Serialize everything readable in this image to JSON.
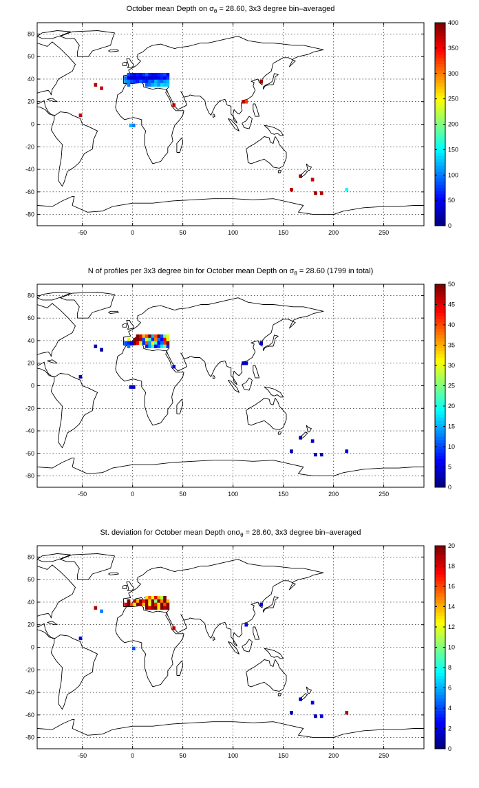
{
  "chart_data": [
    {
      "type": "heatmap",
      "title_parts": [
        "October mean Depth on ",
        "σ",
        "θ",
        " = 28.60, 3x3 degree bin–averaged"
      ],
      "xlim": [
        -95,
        290
      ],
      "ylim": [
        -90,
        90
      ],
      "xticks": [
        -50,
        0,
        50,
        100,
        150,
        200,
        250
      ],
      "yticks": [
        -80,
        -60,
        -40,
        -20,
        0,
        20,
        40,
        60,
        80
      ],
      "grid": true,
      "colorbar": {
        "min": 0,
        "max": 400,
        "ticks": [
          0,
          50,
          100,
          150,
          200,
          250,
          300,
          350,
          400
        ]
      },
      "cells": [
        [
          -4,
          44,
          80
        ],
        [
          -1,
          44,
          60
        ],
        [
          2,
          44,
          40
        ],
        [
          5,
          44,
          60
        ],
        [
          8,
          44,
          50
        ],
        [
          11,
          44,
          70
        ],
        [
          14,
          44,
          90
        ],
        [
          17,
          44,
          60
        ],
        [
          20,
          44,
          40
        ],
        [
          23,
          44,
          50
        ],
        [
          26,
          44,
          60
        ],
        [
          29,
          44,
          70
        ],
        [
          32,
          44,
          80
        ],
        [
          35,
          44,
          50
        ],
        [
          -7,
          41,
          90
        ],
        [
          -4,
          41,
          40
        ],
        [
          -1,
          41,
          30
        ],
        [
          2,
          41,
          30
        ],
        [
          5,
          41,
          50
        ],
        [
          8,
          41,
          40
        ],
        [
          11,
          41,
          30
        ],
        [
          14,
          41,
          50
        ],
        [
          17,
          41,
          30
        ],
        [
          20,
          41,
          40
        ],
        [
          23,
          41,
          30
        ],
        [
          26,
          41,
          50
        ],
        [
          29,
          41,
          60
        ],
        [
          32,
          41,
          40
        ],
        [
          35,
          41,
          70
        ],
        [
          -7,
          38,
          110
        ],
        [
          -4,
          38,
          100
        ],
        [
          -1,
          38,
          80
        ],
        [
          2,
          38,
          70
        ],
        [
          5,
          38,
          60
        ],
        [
          8,
          38,
          90
        ],
        [
          11,
          38,
          70
        ],
        [
          14,
          38,
          60
        ],
        [
          17,
          38,
          90
        ],
        [
          20,
          38,
          80
        ],
        [
          23,
          38,
          120
        ],
        [
          26,
          38,
          100
        ],
        [
          29,
          38,
          90
        ],
        [
          32,
          38,
          110
        ],
        [
          35,
          38,
          120
        ],
        [
          -4,
          35,
          100
        ],
        [
          14,
          35,
          90
        ],
        [
          17,
          35,
          100
        ],
        [
          20,
          35,
          120
        ],
        [
          23,
          35,
          130
        ],
        [
          26,
          35,
          110
        ],
        [
          29,
          35,
          140
        ],
        [
          32,
          35,
          130
        ],
        [
          35,
          35,
          130
        ],
        [
          -37,
          35,
          380
        ],
        [
          -31,
          32,
          370
        ],
        [
          -52,
          8,
          370
        ],
        [
          -2,
          -1,
          120
        ],
        [
          1,
          -1,
          100
        ],
        [
          41,
          17,
          380
        ],
        [
          128,
          38,
          390
        ],
        [
          113,
          20,
          330
        ],
        [
          110,
          20,
          380
        ],
        [
          167,
          -46,
          390
        ],
        [
          179,
          -49,
          370
        ],
        [
          158,
          -58,
          380
        ],
        [
          182,
          -61,
          390
        ],
        [
          188,
          -61,
          380
        ],
        [
          213,
          -58,
          150
        ]
      ]
    },
    {
      "type": "heatmap",
      "title_parts": [
        "N of profiles per 3x3 degree bin for October mean Depth on ",
        "σ",
        "θ",
        " = 28.60 (1799 in total)"
      ],
      "xlim": [
        -95,
        290
      ],
      "ylim": [
        -90,
        90
      ],
      "xticks": [
        -50,
        0,
        50,
        100,
        150,
        200,
        250
      ],
      "yticks": [
        -80,
        -60,
        -40,
        -20,
        0,
        20,
        40,
        60,
        80
      ],
      "grid": true,
      "colorbar": {
        "min": 0,
        "max": 50,
        "ticks": [
          0,
          5,
          10,
          15,
          20,
          25,
          30,
          35,
          40,
          45,
          50
        ]
      },
      "cells": [
        [
          5,
          44,
          50
        ],
        [
          8,
          44,
          45
        ],
        [
          11,
          44,
          35
        ],
        [
          14,
          44,
          40
        ],
        [
          17,
          44,
          50
        ],
        [
          20,
          44,
          15
        ],
        [
          23,
          44,
          40
        ],
        [
          26,
          44,
          50
        ],
        [
          29,
          44,
          10
        ],
        [
          32,
          44,
          25
        ],
        [
          35,
          44,
          30
        ],
        [
          -4,
          41,
          30
        ],
        [
          2,
          41,
          50
        ],
        [
          5,
          41,
          50
        ],
        [
          8,
          41,
          48
        ],
        [
          11,
          41,
          10
        ],
        [
          14,
          41,
          30
        ],
        [
          17,
          41,
          22
        ],
        [
          20,
          41,
          8
        ],
        [
          23,
          41,
          38
        ],
        [
          26,
          41,
          12
        ],
        [
          29,
          41,
          6
        ],
        [
          32,
          41,
          45
        ],
        [
          35,
          41,
          30
        ],
        [
          -7,
          38,
          10
        ],
        [
          -4,
          38,
          8
        ],
        [
          -1,
          38,
          5
        ],
        [
          2,
          38,
          50
        ],
        [
          5,
          38,
          44
        ],
        [
          8,
          38,
          30
        ],
        [
          11,
          38,
          8
        ],
        [
          14,
          38,
          40
        ],
        [
          17,
          38,
          14
        ],
        [
          20,
          38,
          32
        ],
        [
          23,
          38,
          22
        ],
        [
          26,
          38,
          6
        ],
        [
          29,
          38,
          12
        ],
        [
          32,
          38,
          42
        ],
        [
          35,
          38,
          50
        ],
        [
          -4,
          35,
          12
        ],
        [
          14,
          35,
          8
        ],
        [
          17,
          35,
          14
        ],
        [
          20,
          35,
          22
        ],
        [
          23,
          35,
          6
        ],
        [
          26,
          35,
          10
        ],
        [
          29,
          35,
          18
        ],
        [
          32,
          35,
          24
        ],
        [
          35,
          35,
          8
        ],
        [
          -37,
          35,
          3
        ],
        [
          -31,
          32,
          2
        ],
        [
          -52,
          8,
          3
        ],
        [
          -2,
          -1,
          4
        ],
        [
          1,
          -1,
          3
        ],
        [
          41,
          17,
          4
        ],
        [
          128,
          38,
          3
        ],
        [
          113,
          20,
          4
        ],
        [
          110,
          20,
          3
        ],
        [
          167,
          -46,
          2
        ],
        [
          179,
          -49,
          3
        ],
        [
          158,
          -58,
          2
        ],
        [
          182,
          -61,
          3
        ],
        [
          188,
          -61,
          2
        ],
        [
          213,
          -58,
          4
        ]
      ]
    },
    {
      "type": "heatmap",
      "title_parts": [
        "St. deviation for October mean Depth on",
        "σ",
        "θ",
        " = 28.60, 3x3 degree bin–averaged"
      ],
      "xlim": [
        -95,
        290
      ],
      "ylim": [
        -90,
        90
      ],
      "xticks": [
        -50,
        0,
        50,
        100,
        150,
        200,
        250
      ],
      "yticks": [
        -80,
        -60,
        -40,
        -20,
        0,
        20,
        40,
        60,
        80
      ],
      "grid": true,
      "colorbar": {
        "min": 0,
        "max": 20,
        "ticks": [
          0,
          2,
          4,
          6,
          8,
          10,
          12,
          14,
          16,
          18,
          20
        ]
      },
      "cells": [
        [
          14,
          44,
          13
        ],
        [
          17,
          44,
          16
        ],
        [
          20,
          44,
          12
        ],
        [
          23,
          44,
          18
        ],
        [
          26,
          44,
          14
        ],
        [
          29,
          44,
          11
        ],
        [
          32,
          44,
          20
        ],
        [
          -4,
          41,
          20
        ],
        [
          2,
          41,
          19
        ],
        [
          5,
          41,
          14
        ],
        [
          8,
          41,
          20
        ],
        [
          11,
          41,
          17
        ],
        [
          14,
          41,
          20
        ],
        [
          17,
          41,
          13
        ],
        [
          20,
          41,
          20
        ],
        [
          23,
          41,
          10
        ],
        [
          26,
          41,
          20
        ],
        [
          29,
          41,
          15
        ],
        [
          32,
          41,
          20
        ],
        [
          35,
          41,
          14
        ],
        [
          -7,
          38,
          18
        ],
        [
          -4,
          38,
          20
        ],
        [
          -1,
          38,
          16
        ],
        [
          2,
          38,
          12
        ],
        [
          5,
          38,
          20
        ],
        [
          8,
          38,
          19
        ],
        [
          11,
          38,
          14
        ],
        [
          14,
          38,
          20
        ],
        [
          17,
          38,
          12
        ],
        [
          20,
          38,
          20
        ],
        [
          23,
          38,
          17
        ],
        [
          26,
          38,
          13
        ],
        [
          29,
          38,
          20
        ],
        [
          32,
          38,
          16
        ],
        [
          35,
          38,
          20
        ],
        [
          14,
          35,
          20
        ],
        [
          17,
          35,
          18
        ],
        [
          20,
          35,
          20
        ],
        [
          23,
          35,
          20
        ],
        [
          26,
          35,
          13
        ],
        [
          29,
          35,
          20
        ],
        [
          32,
          35,
          19
        ],
        [
          35,
          35,
          20
        ],
        [
          -37,
          35,
          19
        ],
        [
          -31,
          32,
          5
        ],
        [
          -52,
          8,
          2
        ],
        [
          1,
          -1,
          4
        ],
        [
          41,
          17,
          19
        ],
        [
          128,
          38,
          2
        ],
        [
          113,
          20,
          2
        ],
        [
          167,
          -46,
          1
        ],
        [
          179,
          -49,
          2
        ],
        [
          158,
          -58,
          1
        ],
        [
          182,
          -61,
          1
        ],
        [
          188,
          -61,
          2
        ],
        [
          213,
          -58,
          19
        ]
      ]
    }
  ]
}
